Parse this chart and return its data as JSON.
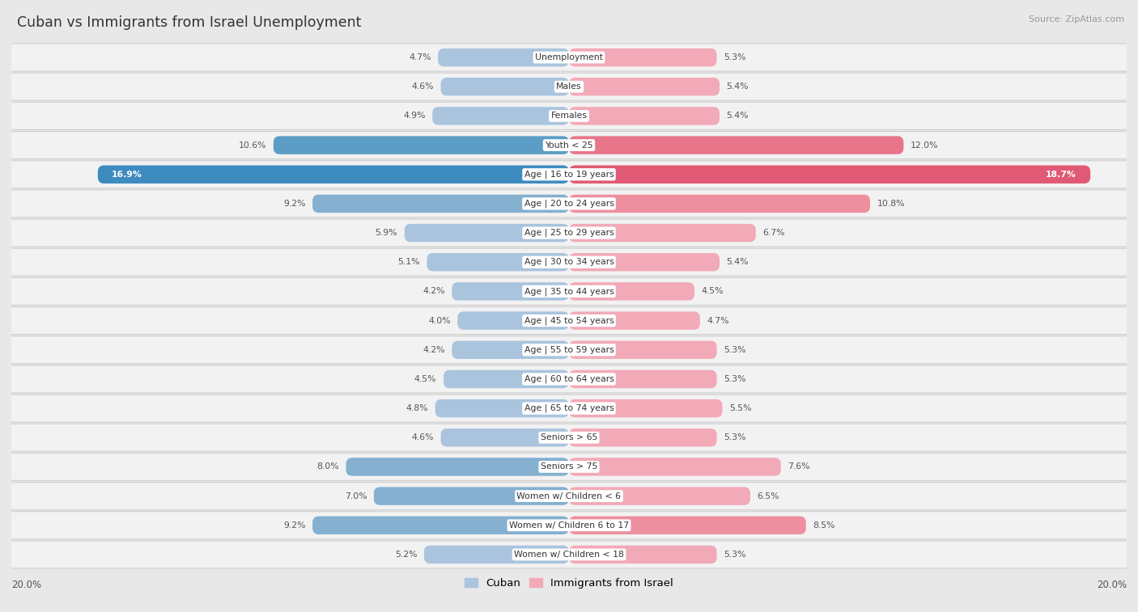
{
  "title": "Cuban vs Immigrants from Israel Unemployment",
  "source": "Source: ZipAtlas.com",
  "legend_labels": [
    "Cuban",
    "Immigrants from Israel"
  ],
  "axis_max": 20.0,
  "categories": [
    "Unemployment",
    "Males",
    "Females",
    "Youth < 25",
    "Age | 16 to 19 years",
    "Age | 20 to 24 years",
    "Age | 25 to 29 years",
    "Age | 30 to 34 years",
    "Age | 35 to 44 years",
    "Age | 45 to 54 years",
    "Age | 55 to 59 years",
    "Age | 60 to 64 years",
    "Age | 65 to 74 years",
    "Seniors > 65",
    "Seniors > 75",
    "Women w/ Children < 6",
    "Women w/ Children 6 to 17",
    "Women w/ Children < 18"
  ],
  "cuban_values": [
    4.7,
    4.6,
    4.9,
    10.6,
    16.9,
    9.2,
    5.9,
    5.1,
    4.2,
    4.0,
    4.2,
    4.5,
    4.8,
    4.6,
    8.0,
    7.0,
    9.2,
    5.2
  ],
  "israel_values": [
    5.3,
    5.4,
    5.4,
    12.0,
    18.7,
    10.8,
    6.7,
    5.4,
    4.5,
    4.7,
    5.3,
    5.3,
    5.5,
    5.3,
    7.6,
    6.5,
    8.5,
    5.3
  ],
  "cuban_color_normal": "#aac4de",
  "cuban_color_medium": "#85b0d0",
  "cuban_color_high": "#5b9dc4",
  "cuban_color_very_high": "#3d8bbf",
  "israel_color_normal": "#f2aab8",
  "israel_color_medium": "#ee8fa0",
  "israel_color_high": "#e8758a",
  "israel_color_very_high": "#e05a75",
  "bg_color": "#e8e8e8",
  "row_color": "#f2f2f2",
  "label_color": "#555555",
  "title_color": "#333333"
}
